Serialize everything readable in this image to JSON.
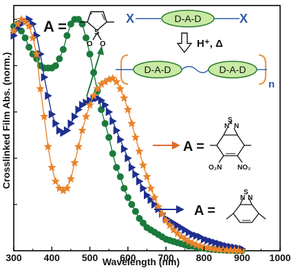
{
  "chart_data": {
    "type": "line",
    "title": "",
    "xlabel": "Wavelength (nm)",
    "ylabel": "Crosslinked Film Abs. (norm.)",
    "xlim": [
      300,
      1000
    ],
    "ylim": [
      0,
      1.06
    ],
    "x_ticks": [
      300,
      400,
      500,
      600,
      700,
      800,
      900,
      1000
    ],
    "x_tick_labels": [
      "300",
      "400",
      "500",
      "600",
      "700",
      "800",
      "900",
      "1000"
    ],
    "grid": false,
    "legend": "none; series identified by annotation arrows to acceptor structures",
    "series": [
      {
        "color": "#1a7a3c",
        "marker": "circle",
        "points": [
          [
            300,
            0.97
          ],
          [
            310,
            0.98
          ],
          [
            320,
            0.95
          ],
          [
            330,
            0.92
          ],
          [
            340,
            0.88
          ],
          [
            350,
            0.85
          ],
          [
            360,
            0.83
          ],
          [
            370,
            0.8
          ],
          [
            380,
            0.79
          ],
          [
            390,
            0.79
          ],
          [
            400,
            0.79
          ],
          [
            410,
            0.8
          ],
          [
            420,
            0.83
          ],
          [
            430,
            0.87
          ],
          [
            440,
            0.93
          ],
          [
            450,
            0.98
          ],
          [
            460,
            1.0
          ],
          [
            470,
            1.0
          ],
          [
            480,
            0.98
          ],
          [
            490,
            0.92
          ],
          [
            500,
            0.85
          ],
          [
            510,
            0.77
          ],
          [
            520,
            0.69
          ],
          [
            530,
            0.61
          ],
          [
            540,
            0.55
          ],
          [
            550,
            0.49
          ],
          [
            560,
            0.42
          ],
          [
            570,
            0.36
          ],
          [
            580,
            0.32
          ],
          [
            590,
            0.27
          ],
          [
            600,
            0.23
          ],
          [
            610,
            0.2
          ],
          [
            620,
            0.17
          ],
          [
            630,
            0.14
          ],
          [
            640,
            0.12
          ],
          [
            650,
            0.1
          ],
          [
            660,
            0.09
          ],
          [
            670,
            0.08
          ],
          [
            680,
            0.07
          ],
          [
            690,
            0.06
          ],
          [
            700,
            0.05
          ],
          [
            710,
            0.045
          ],
          [
            720,
            0.04
          ],
          [
            730,
            0.035
          ],
          [
            740,
            0.03
          ],
          [
            750,
            0.025
          ],
          [
            760,
            0.02
          ],
          [
            770,
            0.02
          ],
          [
            780,
            0.015
          ],
          [
            790,
            0.012
          ],
          [
            800,
            0.01
          ],
          [
            810,
            0.008
          ],
          [
            820,
            0.006
          ],
          [
            830,
            0.005
          ],
          [
            840,
            0.004
          ],
          [
            850,
            0.003
          ],
          [
            860,
            0.002
          ],
          [
            870,
            0.002
          ],
          [
            880,
            0.001
          ],
          [
            890,
            0.001
          ],
          [
            900,
            0.001
          ]
        ]
      },
      {
        "color": "#1f2f8f",
        "marker": "triangle-right",
        "points": [
          [
            300,
            0.93
          ],
          [
            310,
            0.96
          ],
          [
            320,
            0.98
          ],
          [
            330,
            0.99
          ],
          [
            340,
            1.0
          ],
          [
            350,
            0.98
          ],
          [
            360,
            0.93
          ],
          [
            370,
            0.85
          ],
          [
            380,
            0.75
          ],
          [
            390,
            0.67
          ],
          [
            400,
            0.59
          ],
          [
            410,
            0.55
          ],
          [
            420,
            0.52
          ],
          [
            430,
            0.51
          ],
          [
            440,
            0.52
          ],
          [
            450,
            0.55
          ],
          [
            460,
            0.58
          ],
          [
            470,
            0.61
          ],
          [
            480,
            0.63
          ],
          [
            490,
            0.64
          ],
          [
            500,
            0.65
          ],
          [
            510,
            0.655
          ],
          [
            520,
            0.66
          ],
          [
            530,
            0.65
          ],
          [
            540,
            0.63
          ],
          [
            550,
            0.6
          ],
          [
            560,
            0.56
          ],
          [
            570,
            0.52
          ],
          [
            580,
            0.48
          ],
          [
            590,
            0.44
          ],
          [
            600,
            0.4
          ],
          [
            610,
            0.36
          ],
          [
            620,
            0.33
          ],
          [
            630,
            0.3
          ],
          [
            640,
            0.27
          ],
          [
            650,
            0.24
          ],
          [
            660,
            0.22
          ],
          [
            670,
            0.2
          ],
          [
            680,
            0.18
          ],
          [
            690,
            0.16
          ],
          [
            700,
            0.14
          ],
          [
            710,
            0.13
          ],
          [
            720,
            0.12
          ],
          [
            730,
            0.11
          ],
          [
            740,
            0.1
          ],
          [
            750,
            0.09
          ],
          [
            760,
            0.08
          ],
          [
            770,
            0.07
          ],
          [
            780,
            0.065
          ],
          [
            790,
            0.06
          ],
          [
            800,
            0.05
          ],
          [
            810,
            0.045
          ],
          [
            820,
            0.04
          ],
          [
            830,
            0.035
          ],
          [
            840,
            0.03
          ],
          [
            850,
            0.025
          ],
          [
            860,
            0.02
          ],
          [
            870,
            0.017
          ],
          [
            880,
            0.014
          ],
          [
            890,
            0.011
          ],
          [
            900,
            0.008
          ]
        ]
      },
      {
        "color": "#e8832a",
        "marker": "star",
        "points": [
          [
            300,
            0.95
          ],
          [
            310,
            0.98
          ],
          [
            320,
            1.0
          ],
          [
            330,
            0.99
          ],
          [
            340,
            0.97
          ],
          [
            350,
            0.92
          ],
          [
            360,
            0.85
          ],
          [
            370,
            0.7
          ],
          [
            380,
            0.58
          ],
          [
            390,
            0.45
          ],
          [
            400,
            0.36
          ],
          [
            410,
            0.3
          ],
          [
            420,
            0.27
          ],
          [
            430,
            0.26
          ],
          [
            440,
            0.27
          ],
          [
            450,
            0.31
          ],
          [
            460,
            0.38
          ],
          [
            470,
            0.45
          ],
          [
            480,
            0.52
          ],
          [
            490,
            0.58
          ],
          [
            500,
            0.63
          ],
          [
            510,
            0.67
          ],
          [
            520,
            0.7
          ],
          [
            530,
            0.72
          ],
          [
            540,
            0.73
          ],
          [
            550,
            0.74
          ],
          [
            560,
            0.745
          ],
          [
            570,
            0.73
          ],
          [
            580,
            0.7
          ],
          [
            590,
            0.66
          ],
          [
            600,
            0.61
          ],
          [
            610,
            0.55
          ],
          [
            620,
            0.49
          ],
          [
            630,
            0.43
          ],
          [
            640,
            0.37
          ],
          [
            650,
            0.32
          ],
          [
            660,
            0.27
          ],
          [
            670,
            0.23
          ],
          [
            680,
            0.19
          ],
          [
            690,
            0.16
          ],
          [
            700,
            0.13
          ],
          [
            710,
            0.11
          ],
          [
            720,
            0.09
          ],
          [
            730,
            0.075
          ],
          [
            740,
            0.06
          ],
          [
            750,
            0.05
          ],
          [
            760,
            0.04
          ],
          [
            770,
            0.032
          ],
          [
            780,
            0.025
          ],
          [
            790,
            0.02
          ],
          [
            800,
            0.015
          ],
          [
            810,
            0.012
          ],
          [
            820,
            0.009
          ],
          [
            830,
            0.007
          ],
          [
            840,
            0.005
          ],
          [
            850,
            0.004
          ],
          [
            860,
            0.003
          ],
          [
            870,
            0.002
          ],
          [
            880,
            0.002
          ],
          [
            890,
            0.001
          ],
          [
            900,
            0.001
          ]
        ]
      }
    ]
  },
  "annotations": {
    "acceptor_thiophene": {
      "prefix": "A =",
      "atoms": [
        "S",
        "O",
        "O"
      ]
    },
    "scheme": {
      "end_group": "X",
      "unit_label": "D-A-D",
      "condition": "H⁺, Δ",
      "repeat": "n"
    },
    "acceptor_nitro_btd": {
      "prefix": "A =",
      "atoms": [
        "N",
        "S",
        "N"
      ],
      "subst": "O₂N",
      "subst2": "NO₂"
    },
    "acceptor_btd": {
      "prefix": "A =",
      "atoms": [
        "N",
        "S",
        "N"
      ]
    }
  },
  "colors": {
    "green": "#1a7a3c",
    "navy": "#1f2f8f",
    "orange": "#e8832a",
    "oval_fill": "#c8eaa4",
    "oval_stroke": "#2c7a2c",
    "bracket": "#e39a4b",
    "x_color": "#2c5aa8"
  }
}
